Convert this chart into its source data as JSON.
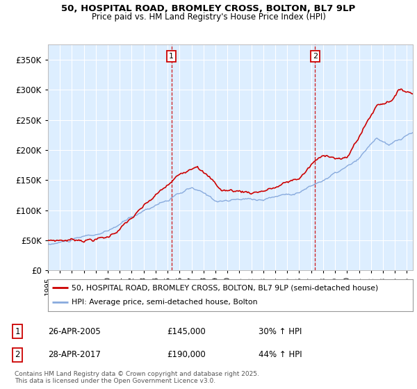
{
  "title1": "50, HOSPITAL ROAD, BROMLEY CROSS, BOLTON, BL7 9LP",
  "title2": "Price paid vs. HM Land Registry's House Price Index (HPI)",
  "legend_line1": "50, HOSPITAL ROAD, BROMLEY CROSS, BOLTON, BL7 9LP (semi-detached house)",
  "legend_line2": "HPI: Average price, semi-detached house, Bolton",
  "sale1_label": "1",
  "sale1_date": "26-APR-2005",
  "sale1_price": "£145,000",
  "sale1_hpi": "30% ↑ HPI",
  "sale1_x": 2005.32,
  "sale1_y": 145000,
  "sale2_label": "2",
  "sale2_date": "28-APR-2017",
  "sale2_price": "£190,000",
  "sale2_hpi": "44% ↑ HPI",
  "sale2_x": 2017.32,
  "sale2_y": 190000,
  "copyright": "Contains HM Land Registry data © Crown copyright and database right 2025.\nThis data is licensed under the Open Government Licence v3.0.",
  "line_color_red": "#cc0000",
  "line_color_blue": "#88aadd",
  "bg_color": "#ddeeff",
  "grid_color": "#ffffff",
  "xmin": 1995,
  "xmax": 2025.5,
  "ymin": 0,
  "ymax": 375000,
  "fig_bg": "#ffffff",
  "yticks": [
    0,
    50000,
    100000,
    150000,
    200000,
    250000,
    300000,
    350000
  ]
}
